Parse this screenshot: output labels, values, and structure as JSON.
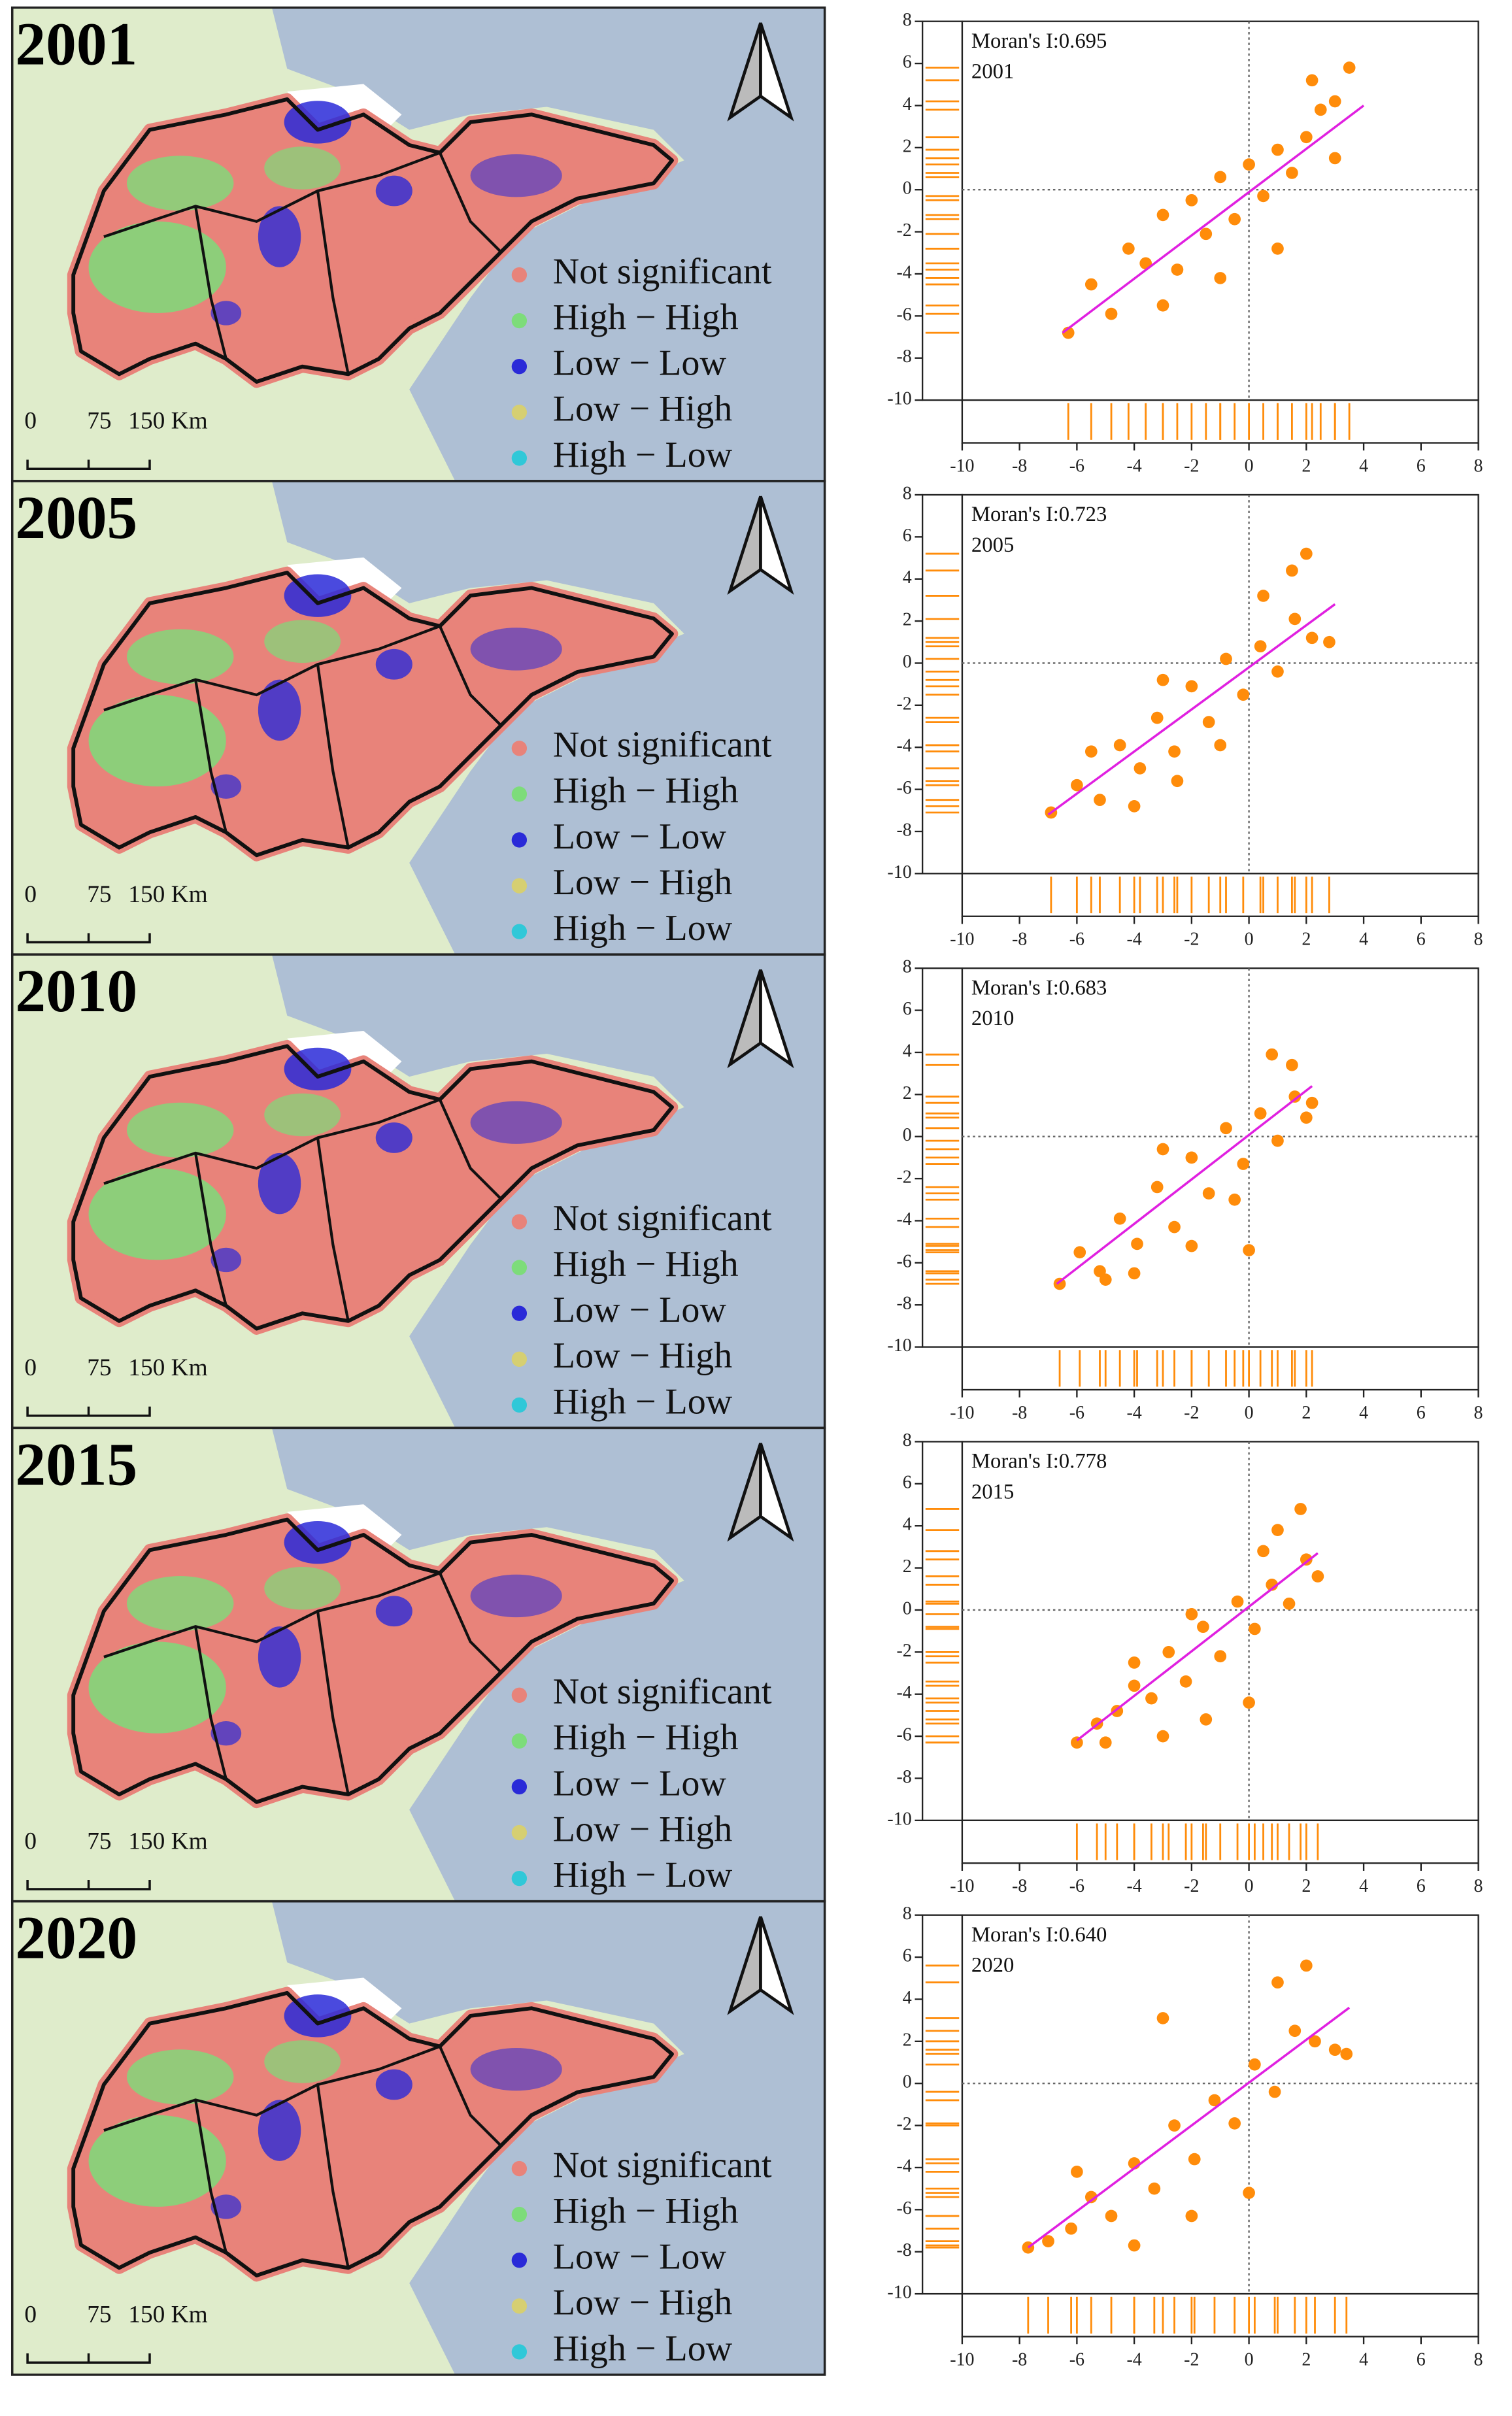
{
  "maps": {
    "years": [
      "2001",
      "2005",
      "2010",
      "2015",
      "2020"
    ],
    "legend": [
      {
        "name": "Not significant",
        "color": "#e8837a"
      },
      {
        "name": "High − High",
        "color": "#7ddc7a"
      },
      {
        "name": "Low − Low",
        "color": "#2a2ad8"
      },
      {
        "name": "Low − High",
        "color": "#d6cf72"
      },
      {
        "name": "High − Low",
        "color": "#30c8d8"
      }
    ],
    "scale_labels": [
      "0",
      "75",
      "150 Km"
    ]
  },
  "chart_data": [
    {
      "type": "scatter",
      "annotation": "Moran's I:0.695",
      "label": "2001",
      "color": "#ff8c0a",
      "trend_color": "#e020e0",
      "x": [
        -6.3,
        -5.5,
        -4.8,
        -4.2,
        -3.6,
        -3,
        -2.5,
        -2,
        -1.5,
        -1,
        -0.5,
        0,
        0.5,
        1,
        1.5,
        2,
        2.5,
        3,
        3.5,
        -3,
        -1,
        1,
        2.2,
        3
      ],
      "y": [
        -6.8,
        -4.5,
        -5.9,
        -2.8,
        -3.5,
        -1.2,
        -3.8,
        -0.5,
        -2.1,
        0.6,
        -1.4,
        1.2,
        -0.3,
        1.9,
        0.8,
        2.5,
        3.8,
        4.2,
        5.8,
        -5.5,
        -4.2,
        -2.8,
        5.2,
        1.5
      ],
      "trend": {
        "x": [
          -6.5,
          4
        ],
        "y": [
          -6.8,
          4.0
        ]
      },
      "xlim": [
        -10,
        8
      ],
      "ylim": [
        -10,
        8
      ],
      "xticks": [
        -10,
        -8,
        -6,
        -4,
        -2,
        0,
        2,
        4,
        6,
        8
      ],
      "yticks": [
        -10,
        -8,
        -6,
        -4,
        -2,
        0,
        2,
        4,
        6,
        8
      ]
    },
    {
      "type": "scatter",
      "annotation": "Moran's I:0.723",
      "label": "2005",
      "color": "#ff8c0a",
      "trend_color": "#e020e0",
      "x": [
        -6.9,
        -6,
        -5.2,
        -4.5,
        -3.8,
        -3.2,
        -2.6,
        -2,
        -1.4,
        -0.8,
        -0.2,
        0.4,
        1,
        1.6,
        2.2,
        2.8,
        -4,
        -2.5,
        -1,
        0.5,
        1.5,
        2,
        -5.5,
        -3
      ],
      "y": [
        -7.1,
        -5.8,
        -6.5,
        -3.9,
        -5,
        -2.6,
        -4.2,
        -1.1,
        -2.8,
        0.2,
        -1.5,
        0.8,
        -0.4,
        2.1,
        1.2,
        1,
        -6.8,
        -5.6,
        -3.9,
        3.2,
        4.4,
        5.2,
        -4.2,
        -0.8
      ],
      "trend": {
        "x": [
          -7,
          3
        ],
        "y": [
          -7.2,
          2.8
        ]
      },
      "xlim": [
        -10,
        8
      ],
      "ylim": [
        -10,
        8
      ],
      "xticks": [
        -10,
        -8,
        -6,
        -4,
        -2,
        0,
        2,
        4,
        6,
        8
      ],
      "yticks": [
        -10,
        -8,
        -6,
        -4,
        -2,
        0,
        2,
        4,
        6,
        8
      ]
    },
    {
      "type": "scatter",
      "annotation": "Moran's I:0.683",
      "label": "2010",
      "color": "#ff8c0a",
      "trend_color": "#e020e0",
      "x": [
        -6.6,
        -5.9,
        -5.2,
        -4.5,
        -3.9,
        -3.2,
        -2.6,
        -2,
        -1.4,
        -0.8,
        -0.2,
        0.4,
        1,
        1.6,
        2.2,
        -4,
        -2,
        -0.5,
        0.8,
        1.5,
        -5,
        -3,
        0,
        2
      ],
      "y": [
        -7,
        -5.5,
        -6.4,
        -3.9,
        -5.1,
        -2.4,
        -4.3,
        -1,
        -2.7,
        0.4,
        -1.3,
        1.1,
        -0.2,
        1.9,
        1.6,
        -6.5,
        -5.2,
        -3,
        3.9,
        3.4,
        -6.8,
        -0.6,
        -5.4,
        0.9
      ],
      "trend": {
        "x": [
          -6.7,
          2.2
        ],
        "y": [
          -7,
          2.4
        ]
      },
      "xlim": [
        -10,
        8
      ],
      "ylim": [
        -10,
        8
      ],
      "xticks": [
        -10,
        -8,
        -6,
        -4,
        -2,
        0,
        2,
        4,
        6,
        8
      ],
      "yticks": [
        -10,
        -8,
        -6,
        -4,
        -2,
        0,
        2,
        4,
        6,
        8
      ]
    },
    {
      "type": "scatter",
      "annotation": "Moran's I:0.778",
      "label": "2015",
      "color": "#ff8c0a",
      "trend_color": "#e020e0",
      "x": [
        -6,
        -5.3,
        -4.6,
        -4,
        -3.4,
        -2.8,
        -2.2,
        -1.6,
        -1,
        -0.4,
        0.2,
        0.8,
        1.4,
        2,
        2.4,
        -3,
        -1.5,
        0,
        1,
        1.8,
        -5,
        -2,
        0.5,
        -4
      ],
      "y": [
        -6.3,
        -5.4,
        -4.8,
        -3.6,
        -4.2,
        -2,
        -3.4,
        -0.8,
        -2.2,
        0.4,
        -0.9,
        1.2,
        0.3,
        2.4,
        1.6,
        -6,
        -5.2,
        -4.4,
        3.8,
        4.8,
        -6.3,
        -0.2,
        2.8,
        -2.5
      ],
      "trend": {
        "x": [
          -6,
          2.4
        ],
        "y": [
          -6.2,
          2.7
        ]
      },
      "xlim": [
        -10,
        8
      ],
      "ylim": [
        -10,
        8
      ],
      "xticks": [
        -10,
        -8,
        -6,
        -4,
        -2,
        0,
        2,
        4,
        6,
        8
      ],
      "yticks": [
        -10,
        -8,
        -6,
        -4,
        -2,
        0,
        2,
        4,
        6,
        8
      ]
    },
    {
      "type": "scatter",
      "annotation": "Moran's I:0.640",
      "label": "2020",
      "color": "#ff8c0a",
      "trend_color": "#e020e0",
      "x": [
        -7.7,
        -7,
        -6.2,
        -5.5,
        -4.8,
        -4,
        -3.3,
        -2.6,
        -1.9,
        -1.2,
        -0.5,
        0.2,
        0.9,
        1.6,
        2.3,
        3,
        3.4,
        -4,
        -2,
        0,
        1,
        2,
        -6,
        -3
      ],
      "y": [
        -7.8,
        -7.5,
        -6.9,
        -5.4,
        -6.3,
        -3.8,
        -5,
        -2,
        -3.6,
        -0.8,
        -1.9,
        0.9,
        -0.4,
        2.5,
        2,
        1.6,
        1.4,
        -7.7,
        -6.3,
        -5.2,
        4.8,
        5.6,
        -4.2,
        3.1
      ],
      "trend": {
        "x": [
          -7.7,
          3.5
        ],
        "y": [
          -7.8,
          3.6
        ]
      },
      "xlim": [
        -10,
        8
      ],
      "ylim": [
        -10,
        8
      ],
      "xticks": [
        -10,
        -8,
        -6,
        -4,
        -2,
        0,
        2,
        4,
        6,
        8
      ],
      "yticks": [
        -10,
        -8,
        -6,
        -4,
        -2,
        0,
        2,
        4,
        6,
        8
      ]
    }
  ]
}
